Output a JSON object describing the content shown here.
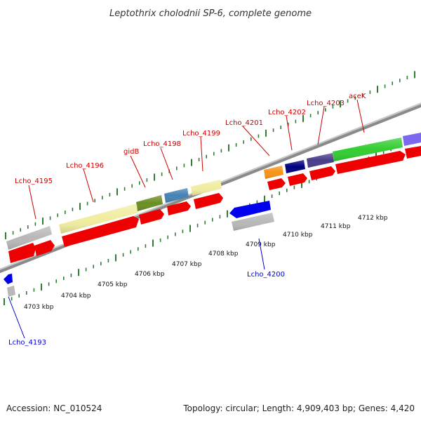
{
  "title": "Leptothrix cholodnii SP-6, complete genome",
  "footer": {
    "accession": "Accession: NC_010524",
    "summary": "Topology: circular; Length: 4,909,403 bp; Genes: 4,420"
  },
  "colors": {
    "backbone": "#888888",
    "tick": "#2e7d32",
    "forward_label": "#cc0000",
    "reverse_label": "#0000cc",
    "cds": "#ee0000",
    "reverse_cds": "#0000ee"
  },
  "scale_labels": [
    "4703 kbp",
    "4704 kbp",
    "4705 kbp",
    "4706 kbp",
    "4707 kbp",
    "4708 kbp",
    "4709 kbp",
    "4710 kbp",
    "4711 kbp",
    "4712 kbp"
  ],
  "gene_labels": [
    {
      "text": "Lcho_4195",
      "strand": "forward"
    },
    {
      "text": "Lcho_4196",
      "strand": "forward"
    },
    {
      "text": "gidB",
      "strand": "forward"
    },
    {
      "text": "Lcho_4198",
      "strand": "forward"
    },
    {
      "text": "Lcho_4199",
      "strand": "forward"
    },
    {
      "text": "Lcho_4201",
      "strand": "forward"
    },
    {
      "text": "Lcho_4202",
      "strand": "forward"
    },
    {
      "text": "Lcho_4203",
      "strand": "forward"
    },
    {
      "text": "aceK",
      "strand": "forward"
    },
    {
      "text": "Lcho_4200",
      "strand": "reverse"
    },
    {
      "text": "Lcho_4193",
      "strand": "reverse"
    }
  ]
}
